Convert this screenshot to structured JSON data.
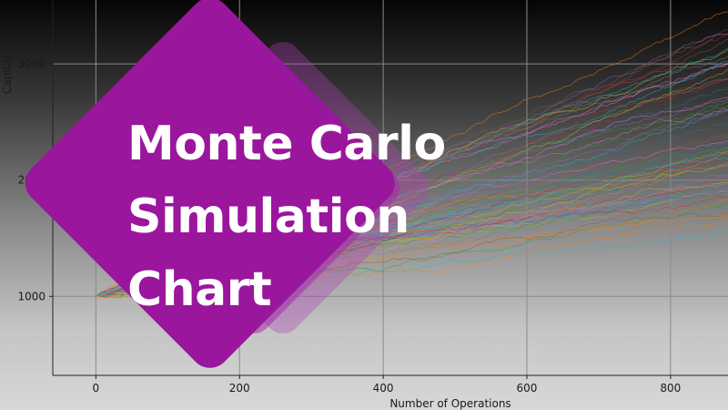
{
  "banner": {
    "title_lines": [
      "Monte Carlo",
      "Simulation",
      "Chart"
    ],
    "accent_color": "#9a169d"
  },
  "chart_data": {
    "type": "line",
    "title": "",
    "xlabel": "Number of Operations",
    "ylabel": "Capital",
    "x_ticks": [
      0,
      200,
      400,
      600,
      800
    ],
    "x_tick_labels": [
      "0",
      "200",
      "400",
      "600",
      "800"
    ],
    "y_ticks": [
      1000,
      2000,
      3000
    ],
    "y_tick_labels": [
      "1000",
      "2000",
      "3000"
    ],
    "xlim": [
      -60,
      880
    ],
    "ylim": [
      320,
      3550
    ],
    "grid": true,
    "num_series_shown": 60,
    "start_capital": 1000,
    "end_capital_range": [
      1700,
      3300
    ],
    "colors": [
      "#1f77b4",
      "#ff7f0e",
      "#2ca02c",
      "#d62728",
      "#9467bd",
      "#8c564b",
      "#e377c2",
      "#7f7f7f",
      "#bcbd22",
      "#17becf"
    ]
  }
}
